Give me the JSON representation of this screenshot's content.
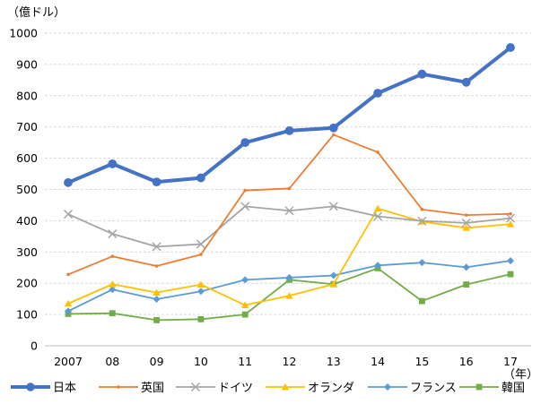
{
  "chart_data": {
    "type": "line",
    "y_unit_label": "（億ドル）",
    "x_unit_label": "（年）",
    "categories": [
      "2007",
      "08",
      "09",
      "10",
      "11",
      "12",
      "13",
      "14",
      "15",
      "16",
      "17"
    ],
    "ylim": [
      0,
      1000
    ],
    "y_ticks": [
      "0",
      "100",
      "200",
      "300",
      "400",
      "500",
      "600",
      "700",
      "800",
      "900",
      "1000"
    ],
    "grid": "horizontal-dashed",
    "legend_position": "bottom",
    "series": [
      {
        "name": "日本",
        "color": "#4472C4",
        "marker": "circle",
        "bold": true,
        "values": [
          522,
          582,
          524,
          537,
          650,
          688,
          697,
          808,
          869,
          843,
          954
        ]
      },
      {
        "name": "英国",
        "color": "#ED7D31",
        "marker": "small-dot",
        "values": [
          228,
          286,
          255,
          292,
          497,
          503,
          675,
          619,
          436,
          418,
          422
        ]
      },
      {
        "name": "ドイツ",
        "color": "#A5A5A5",
        "marker": "x",
        "values": [
          421,
          358,
          317,
          325,
          446,
          432,
          446,
          414,
          399,
          393,
          408
        ]
      },
      {
        "name": "オランダ",
        "color": "#FFC000",
        "marker": "triangle",
        "values": [
          135,
          197,
          170,
          196,
          130,
          160,
          197,
          439,
          397,
          377,
          389
        ]
      },
      {
        "name": "フランス",
        "color": "#5B9BD5",
        "marker": "diamond",
        "values": [
          111,
          180,
          149,
          174,
          211,
          218,
          225,
          257,
          266,
          251,
          272
        ]
      },
      {
        "name": "韓国",
        "color": "#70AD47",
        "marker": "square",
        "values": [
          102,
          104,
          82,
          85,
          100,
          211,
          197,
          248,
          143,
          196,
          229
        ]
      }
    ]
  }
}
